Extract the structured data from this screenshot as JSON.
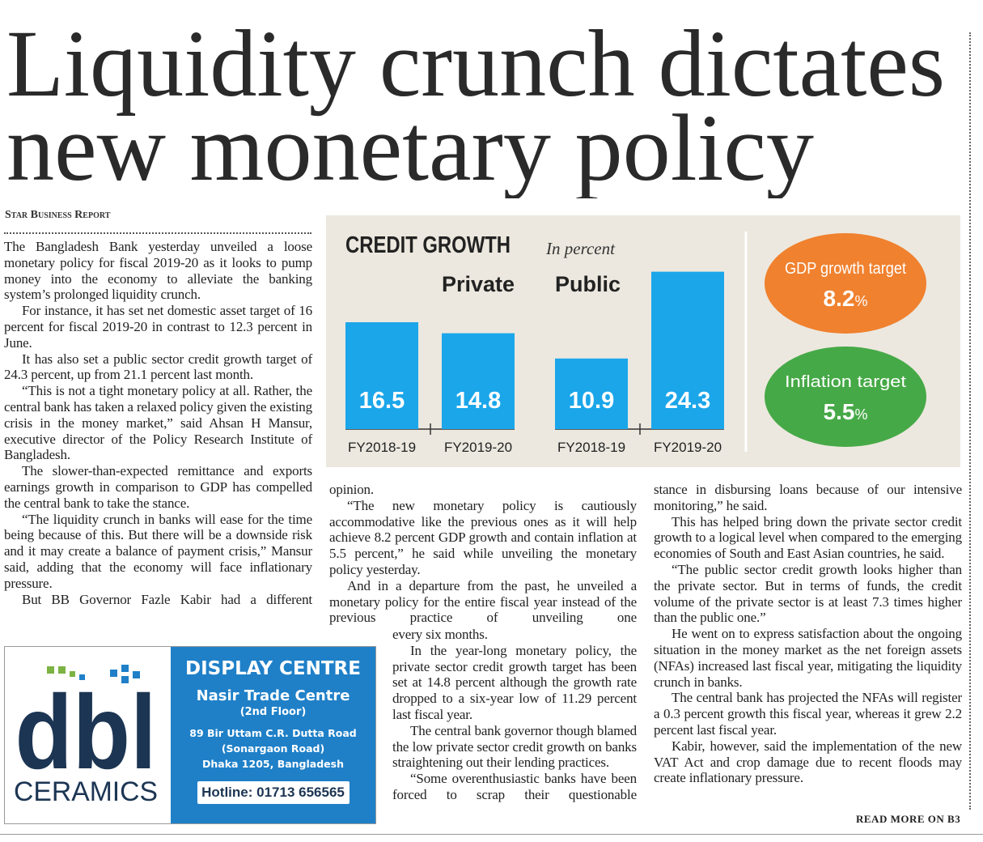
{
  "header": {
    "title_lines": [
      "Liquidity crunch dictates",
      "new monetary policy"
    ],
    "byline": "Star Business Report"
  },
  "chart_data": {
    "type": "bar",
    "title": "CREDIT GROWTH",
    "subtitle": "In percent",
    "color": "#1ba6ea",
    "groups": [
      {
        "name": "Private",
        "categories": [
          "FY2018-19",
          "FY2019-20"
        ],
        "values": [
          16.5,
          14.8
        ]
      },
      {
        "name": "Public",
        "categories": [
          "FY2018-19",
          "FY2019-20"
        ],
        "values": [
          10.9,
          24.3
        ]
      }
    ],
    "targets": [
      {
        "label": "GDP growth target",
        "value": 8.2,
        "unit": "%",
        "color": "#f0812e"
      },
      {
        "label": "Inflation target",
        "value": 5.5,
        "unit": "%",
        "color": "#46a947"
      }
    ]
  },
  "columns": {
    "left": [
      "The Bangladesh Bank yesterday unveiled a loose monetary policy for fiscal 2019-20 as it looks to pump money into the economy to alleviate the banking system’s prolonged liquidity crunch.",
      "For instance, it has set net domestic asset target of 16 percent for fiscal 2019-20 in contrast to 12.3 percent in June.",
      "It has also set a public sector credit growth target of 24.3 percent, up from 21.1 percent last month.",
      "“This is not a tight monetary policy at all. Rather, the central bank has taken a relaxed policy given the existing crisis in the money market,” said Ahsan H Mansur, executive director of the Policy Research Institute of Bangladesh.",
      "The slower-than-expected remittance and exports earnings growth in comparison to GDP has compelled the central bank to take the stance.",
      "“The liquidity crunch in banks will ease for the time being because of this. But there will be a downside risk and it may create a balance of payment crisis,” Mansur said, adding that the economy will face inflationary pressure.",
      "But BB Governor Fazle Kabir had a different"
    ],
    "middle_top": [
      "opinion.",
      "“The new monetary policy is cautiously accommodative like the previous ones as it will help achieve 8.2 percent GDP growth and contain inflation at 5.5 percent,” he said while unveiling the monetary policy yesterday.",
      "And in a departure from the past, he unveiled a monetary policy for the entire fiscal year instead of the previous practice of unveiling one"
    ],
    "middle_bottom": [
      "every six months.",
      "In the year-long monetary policy, the private sector credit growth target has been set at 14.8 percent although the growth rate dropped to a six-year low of 11.29 percent last fiscal year.",
      "The central bank governor though blamed the low private sector credit growth on banks straightening out their lending practices.",
      "“Some overenthusiastic banks have been forced to scrap their questionable"
    ],
    "right": [
      "stance in disbursing loans because of our intensive monitoring,” he said.",
      "This has helped bring down the private sector credit growth to a logical level when compared to the emerging economies of South and East Asian countries, he said.",
      "“The public sector credit growth looks higher than the private sector. But in terms of funds, the credit volume of the private sector is at least 7.3 times higher than the public one.”",
      "He went on to express satisfaction about the ongoing situation in the money market as the net foreign assets (NFAs) increased last fiscal year, mitigating the liquidity crunch in banks.",
      "The central bank has projected the NFAs will register a 0.3 percent growth this fiscal year, whereas it grew 2.2 percent last fiscal year.",
      "Kabir, however, said the implementation of the new VAT Act and crop damage due to recent floods may create inflationary pressure."
    ]
  },
  "read_more": "READ MORE ON B3",
  "ad": {
    "logo": "dbl",
    "brand": "CERAMICS",
    "heading": "DISPLAY CENTRE",
    "venue": "Nasir Trade Centre",
    "floor": "(2nd Floor)",
    "address": [
      "89 Bir Uttam C.R. Dutta Road",
      "(Sonargaon Road)",
      "Dhaka 1205, Bangladesh"
    ],
    "hotline": "Hotline: 01713 656565"
  }
}
